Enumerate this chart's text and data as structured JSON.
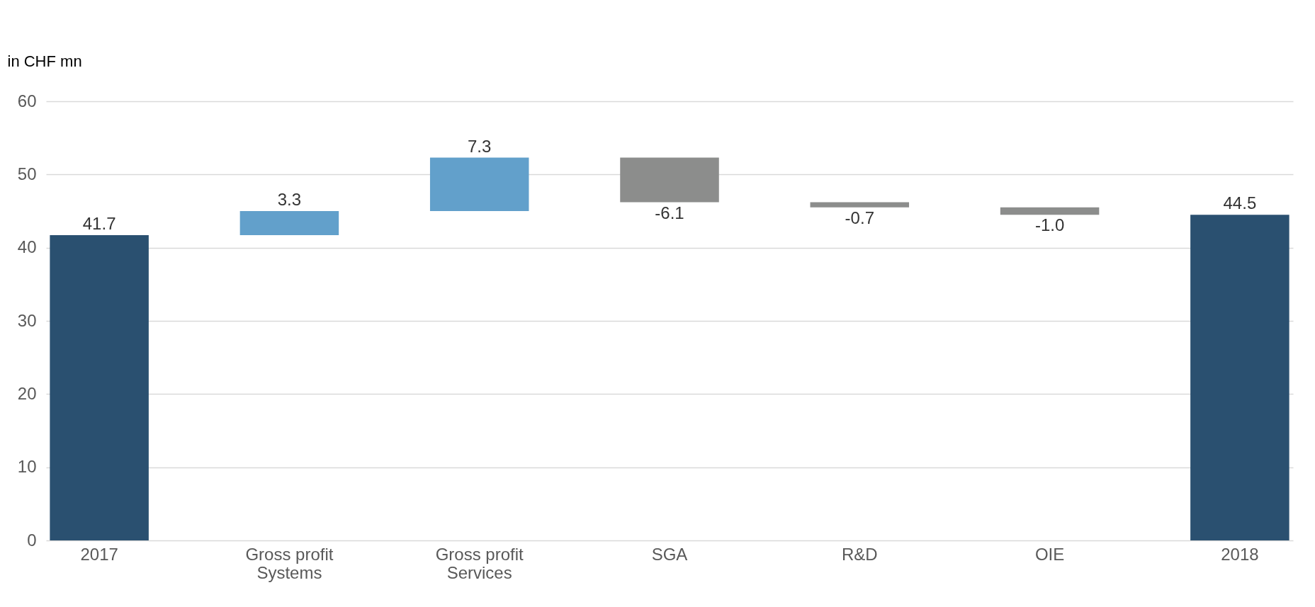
{
  "chart_data": {
    "type": "bar",
    "ylabel": "in CHF mn",
    "categories": [
      "2017",
      "Gross profit\nSystems",
      "Gross profit\nServices",
      "SGA",
      "R&D",
      "OIE",
      "2018"
    ],
    "values": [
      41.7,
      3.3,
      7.3,
      -6.1,
      -0.7,
      -1.0,
      44.5
    ],
    "base": [
      0,
      41.7,
      45.0,
      52.3,
      46.2,
      45.5,
      0
    ],
    "colors": [
      "#2a5070",
      "#62a0cb",
      "#62a0cb",
      "#8c8d8c",
      "#8c8d8c",
      "#8c8d8c",
      "#2a5070"
    ],
    "value_labels": [
      "41.7",
      "3.3",
      "7.3",
      "-6.1",
      "-0.7",
      "-1.0",
      "44.5"
    ],
    "ylim": [
      0,
      60
    ],
    "yticks": [
      0,
      10,
      20,
      30,
      40,
      50,
      60
    ],
    "grid": "y"
  }
}
